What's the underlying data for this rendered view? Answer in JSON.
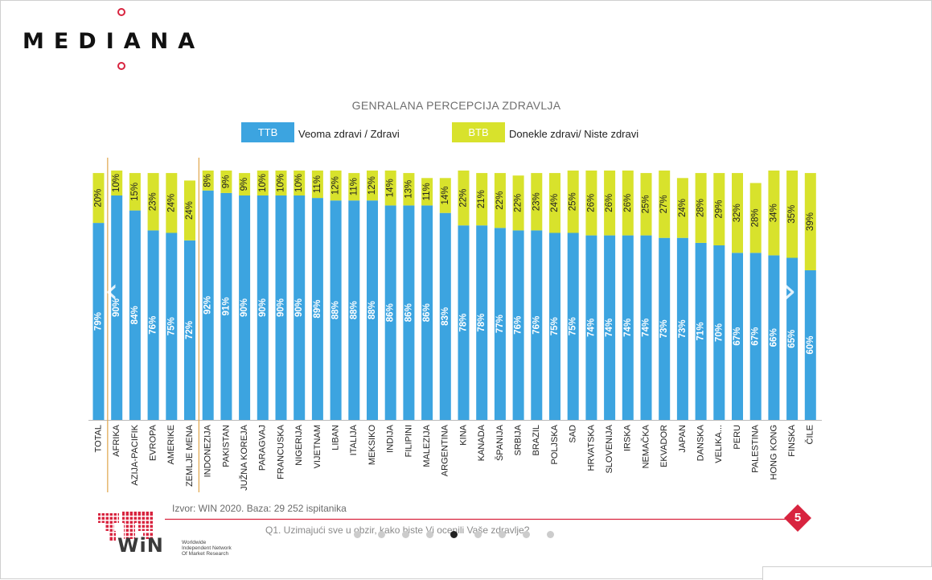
{
  "brand": {
    "logo_text": "MEDIANA",
    "accent_color": "#d8243f"
  },
  "legend": {
    "ttb_label": "TTB",
    "ttb_text": "Veoma zdravi / Zdravi",
    "btb_label": "BTB",
    "btb_text": "Donekle zdravi/ Niste zdravi"
  },
  "colors": {
    "ttb": "#3ca4e0",
    "btb": "#d8e22c",
    "separator": "#e0a54a"
  },
  "chart_data": {
    "type": "bar",
    "stacked": true,
    "title": "GENRALANA PERCEPCIJA ZDRAVLJA",
    "categories": [
      "TOTAL",
      "AFRIKA",
      "AZIJA-PACIFIK",
      "EVROPA",
      "AMERIKE",
      "ZEMLJE MENA",
      "INDONEZIJA",
      "PAKISTAN",
      "JUŽNA KOREJA",
      "PARAGVAJ",
      "FRANCUSKA",
      "NIGERIJA",
      "VIJETNAM",
      "LIBAN",
      "ITALIJA",
      "MEKSIKO",
      "INDIJA",
      "FILIPINI",
      "MALEZIJA",
      "ARGENTINA",
      "KINA",
      "KANADA",
      "ŠPANIJA",
      "SRBIJA",
      "BRAZIL",
      "POLJSKA",
      "SAD",
      "HRVATSKA",
      "SLOVENIJA",
      "IRSKA",
      "NEMAČKA",
      "EKVADOR",
      "JAPAN",
      "DANSKA",
      "VELIKA...",
      "PERU",
      "PALESTINA",
      "HONG KONG",
      "FINSKA",
      "ČILE"
    ],
    "series": [
      {
        "name": "TTB",
        "values": [
          79,
          90,
          84,
          76,
          75,
          72,
          92,
          91,
          90,
          90,
          90,
          90,
          89,
          88,
          88,
          88,
          86,
          86,
          86,
          83,
          78,
          78,
          77,
          76,
          76,
          75,
          75,
          74,
          74,
          74,
          74,
          73,
          73,
          71,
          70,
          67,
          67,
          66,
          65,
          60
        ]
      },
      {
        "name": "BTB",
        "values": [
          20,
          10,
          15,
          23,
          24,
          24,
          8,
          9,
          9,
          10,
          10,
          10,
          11,
          12,
          11,
          12,
          14,
          13,
          11,
          14,
          22,
          21,
          22,
          22,
          23,
          24,
          25,
          26,
          26,
          26,
          25,
          27,
          24,
          28,
          29,
          32,
          28,
          34,
          35,
          39
        ]
      }
    ],
    "value_labels": {
      "TTB": [
        "79%",
        "90%",
        "84%",
        "76%",
        "75%",
        "72%",
        "92%",
        "91%",
        "90%",
        "90%",
        "90%",
        "90%",
        "89%",
        "88%",
        "88%",
        "88%",
        "86%",
        "86%",
        "86%",
        "83%",
        "78%",
        "78%",
        "77%",
        "76%",
        "76%",
        "75%",
        "75%",
        "74%",
        "74%",
        "74%",
        "74%",
        "73%",
        "73%",
        "71%",
        "70%",
        "67%",
        "67%",
        "66%",
        "65%",
        "60%"
      ],
      "BTB": [
        "20%",
        "10%",
        "15%",
        "23%",
        "24%",
        "24%",
        "8%",
        "9%",
        "9%",
        "10%",
        "10%",
        "10%",
        "11%",
        "12%",
        "11%",
        "12%",
        "14%",
        "13%",
        "11%",
        "14%",
        "22%",
        "21%",
        "22%",
        "22%",
        "23%",
        "24%",
        "25%",
        "26%",
        "26%",
        "26%",
        "25%",
        "27%",
        "24%",
        "28%",
        "29%",
        "32%",
        "28%",
        "34%",
        "35%",
        "39%"
      ]
    },
    "group_separators_after": [
      "TOTAL",
      "ZEMLJE MENA"
    ],
    "ylim": [
      0,
      100
    ]
  },
  "footer": {
    "source": "Izvor: WIN 2020. Baza: 29 252 ispitanika",
    "question": "Q1. Uzimajući sve u obzir, kako biste Vi ocenili Vaše zdravlje?",
    "win_logo": "WiN",
    "win_subtitle": [
      "Worldwide",
      "Independent Network",
      "Of Market Research"
    ],
    "page_number": "5",
    "page_count": 9,
    "active_page": 5
  },
  "navigation": {
    "prev_icon": "chevron-left-icon",
    "next_icon": "chevron-right-icon"
  }
}
